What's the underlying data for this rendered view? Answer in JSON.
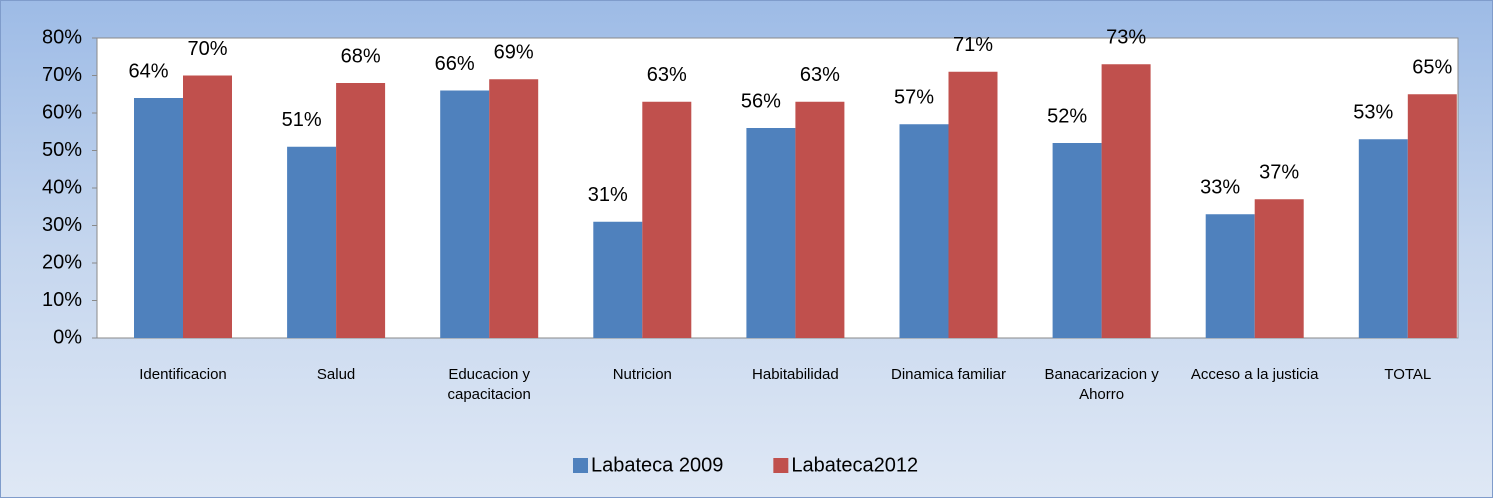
{
  "chart_data": {
    "type": "bar",
    "categories": [
      "Identificacion",
      "Salud",
      "Educacion y capacitacion",
      "Nutricion",
      "Habitabilidad",
      "Dinamica familiar",
      "Banacarizacion y Ahorro",
      "Acceso a la justicia",
      "TOTAL"
    ],
    "series": [
      {
        "name": "Labateca 2009",
        "color": "#4f81bd",
        "values": [
          64,
          51,
          66,
          31,
          56,
          57,
          52,
          33,
          53
        ],
        "value_labels": [
          "64%",
          "51%",
          "66%",
          "31%",
          "56%",
          "57%",
          "52%",
          "33%",
          "53%"
        ]
      },
      {
        "name": "Labateca2012",
        "color": "#c0504d",
        "values": [
          70,
          68,
          69,
          63,
          63,
          71,
          73,
          37,
          65
        ],
        "value_labels": [
          "70%",
          "68%",
          "69%",
          "63%",
          "63%",
          "71%",
          "73%",
          "37%",
          "65%"
        ]
      }
    ],
    "ylim": [
      0,
      80
    ],
    "yticks": [
      {
        "value": 0,
        "label": "0%"
      },
      {
        "value": 10,
        "label": "10%"
      },
      {
        "value": 20,
        "label": "20%"
      },
      {
        "value": 30,
        "label": "30%"
      },
      {
        "value": 40,
        "label": "40%"
      },
      {
        "value": 50,
        "label": "50%"
      },
      {
        "value": 60,
        "label": "60%"
      },
      {
        "value": 70,
        "label": "70%"
      },
      {
        "value": 80,
        "label": "80%"
      }
    ],
    "legend": "bottom",
    "grid": false
  }
}
